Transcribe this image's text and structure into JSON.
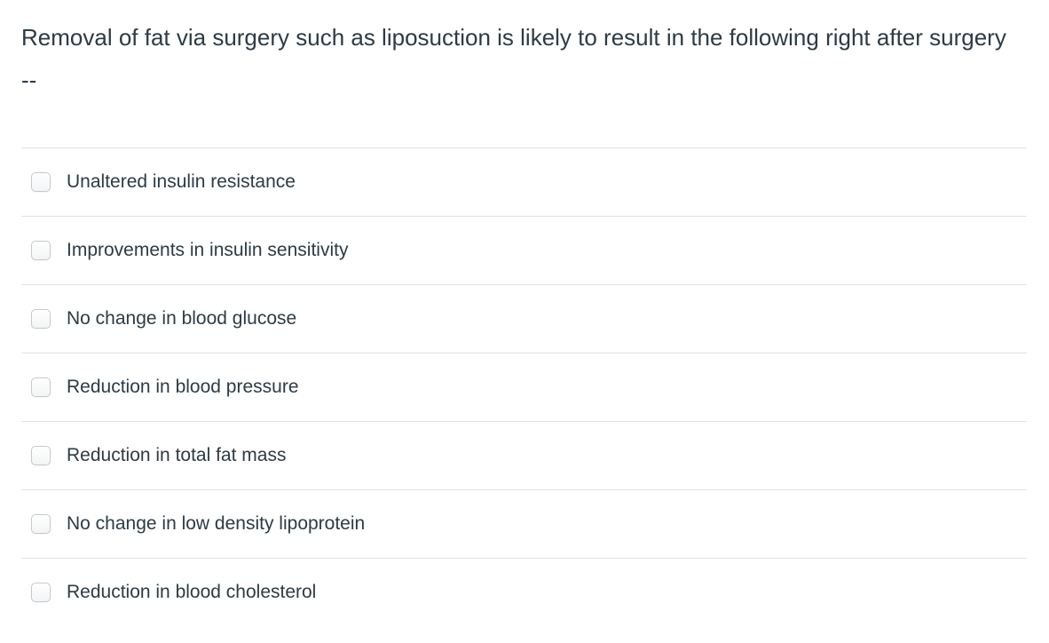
{
  "question": {
    "text": "Removal of fat via surgery such as liposuction is likely to result in the following right after surgery --"
  },
  "options": [
    {
      "label": "Unaltered insulin resistance",
      "checked": false
    },
    {
      "label": "Improvements in insulin sensitivity",
      "checked": false
    },
    {
      "label": "No change in blood glucose",
      "checked": false
    },
    {
      "label": "Reduction in blood pressure",
      "checked": false
    },
    {
      "label": "Reduction in total fat mass",
      "checked": false
    },
    {
      "label": "No change in low density lipoprotein",
      "checked": false
    },
    {
      "label": "Reduction in blood cholesterol",
      "checked": false
    }
  ],
  "colors": {
    "text": "#2D3B45",
    "divider": "#e2e2e2",
    "checkbox_border": "#c5c9cd",
    "background": "#ffffff"
  }
}
